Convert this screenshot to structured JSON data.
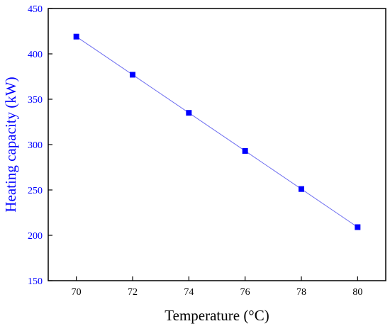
{
  "chart_data": {
    "type": "line",
    "xlabel": "Temperature (°C)",
    "ylabel": "Heating capacity (kW)",
    "xlim": [
      69,
      81
    ],
    "ylim": [
      150,
      450
    ],
    "x_ticks": [
      "70",
      "72",
      "74",
      "76",
      "78",
      "80"
    ],
    "x_tick_values": [
      70,
      72,
      74,
      76,
      78,
      80
    ],
    "y_ticks": [
      "150",
      "200",
      "250",
      "300",
      "350",
      "400",
      "450"
    ],
    "y_tick_values": [
      150,
      200,
      250,
      300,
      350,
      400,
      450
    ],
    "grid": false,
    "legend": false,
    "marker": "square",
    "series": [
      {
        "x": [
          70,
          72,
          74,
          76,
          78,
          80
        ],
        "y": [
          419,
          377,
          335,
          293,
          251,
          209
        ]
      }
    ],
    "colors": {
      "series": "#0000ff",
      "line": "#6f6ff0",
      "y_axis_text": "#0000ff",
      "x_axis_text": "#000000",
      "frame": "#000000"
    }
  }
}
